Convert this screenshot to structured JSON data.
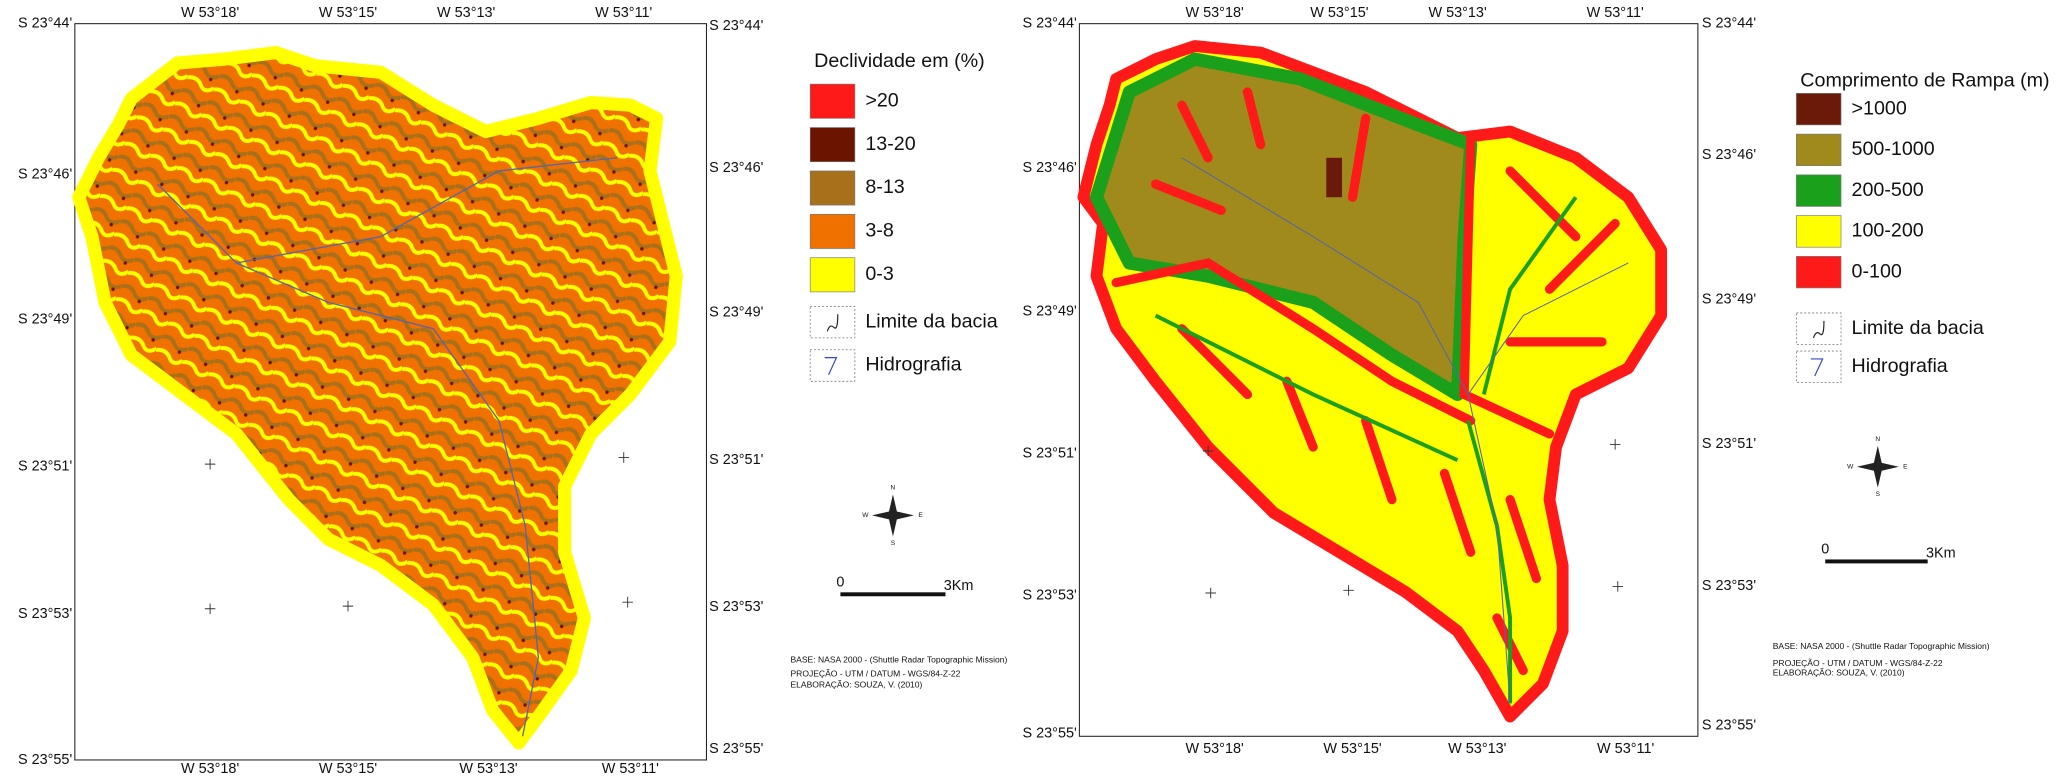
{
  "maps": [
    {
      "top_labels": [
        "W 53°18'",
        "W 53°15'",
        "W 53°13'",
        "W 53°11'"
      ],
      "bottom_labels": [
        "W 53°18'",
        "W 53°15'",
        "W 53°13'",
        "W 53°11'"
      ],
      "left_labels": [
        "S 23°44'",
        "S 23°46'",
        "S 23°49'",
        "S 23°51'",
        "S 23°53'",
        "S 23°55'"
      ],
      "right_labels": [
        "S 23°44'",
        "S 23°46'",
        "S 23°49'",
        "S 23°51'",
        "S 23°53'",
        "S 23°55'"
      ],
      "legend": {
        "title": "Declividade em (%)",
        "classes": [
          {
            "label": ">20",
            "color": "#ff1a1a"
          },
          {
            "label": "13-20",
            "color": "#6b1400"
          },
          {
            "label": "8-13",
            "color": "#a8701a"
          },
          {
            "label": "3-8",
            "color": "#f07000"
          },
          {
            "label": "0-3",
            "color": "#ffff00"
          }
        ],
        "symbols": [
          "Limite da bacia",
          "Hidrografia"
        ]
      },
      "compass": [
        "N",
        "E",
        "S",
        "W"
      ],
      "scale": [
        "0",
        "3Km"
      ],
      "credits": [
        "BASE: NASA 2000 - (Shuttle Radar Topographic Mission)",
        "PROJEÇÃO - UTM / DATUM - WGS/84-Z-22",
        "ELABORAÇÃO: SOUZA, V. (2010)"
      ]
    },
    {
      "top_labels": [
        "W 53°18'",
        "W 53°15'",
        "W 53°13'",
        "W 53°11'"
      ],
      "bottom_labels": [
        "W 53°18'",
        "W 53°15'",
        "W 53°13'",
        "W 53°11'"
      ],
      "left_labels": [
        "S 23°44'",
        "S 23°46'",
        "S 23°49'",
        "S 23°51'",
        "S 23°53'",
        "S 23°55'"
      ],
      "right_labels": [
        "S 23°44'",
        "S 23°46'",
        "S 23°49'",
        "S 23°51'",
        "S 23°53'",
        "S 23°55'"
      ],
      "legend": {
        "title": "Comprimento de Rampa (m)",
        "classes": [
          {
            "label": ">1000",
            "color": "#6b1a0a"
          },
          {
            "label": "500-1000",
            "color": "#a08a1c"
          },
          {
            "label": "200-500",
            "color": "#1aa01a"
          },
          {
            "label": "100-200",
            "color": "#ffff00"
          },
          {
            "label": "0-100",
            "color": "#ff1a1a"
          }
        ],
        "symbols": [
          "Limite da bacia",
          "Hidrografia"
        ]
      },
      "compass": [
        "N",
        "E",
        "S",
        "W"
      ],
      "scale": [
        "0",
        "3Km"
      ],
      "credits": [
        "BASE: NASA 2000 - (Shuttle Radar Topographic Mission)",
        "PROJEÇÃO - UTM / DATUM - WGS/84-Z-22",
        "ELABORAÇÃO: SOUZA, V. (2010)"
      ]
    }
  ]
}
